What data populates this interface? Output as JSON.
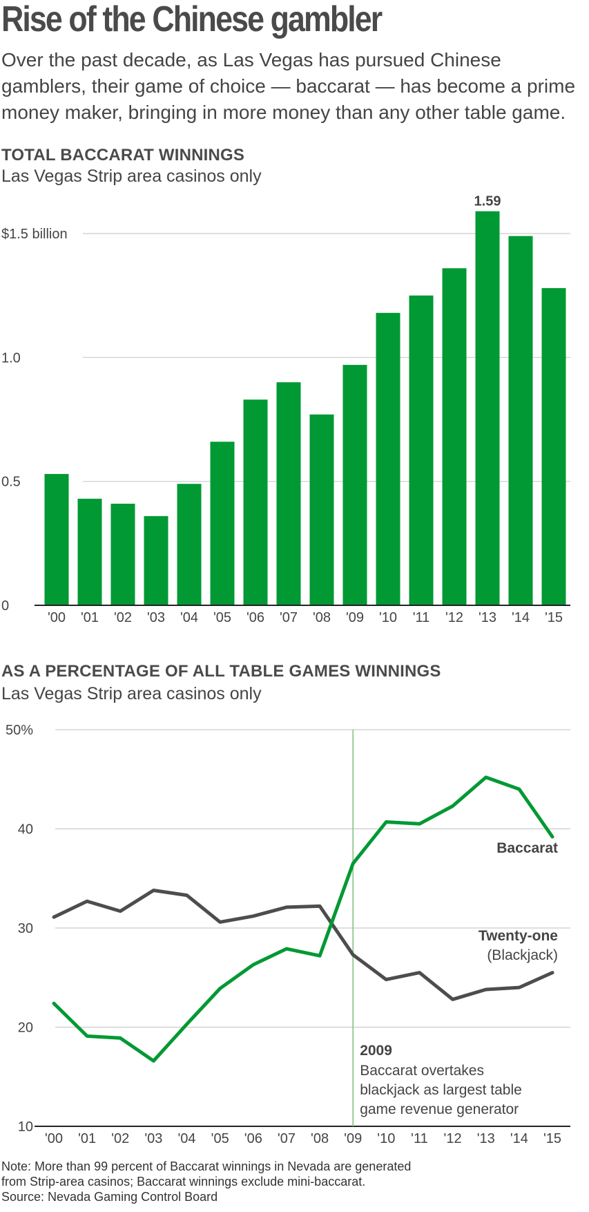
{
  "title": "Rise of the Chinese gambler",
  "intro": "Over the past decade, as Las Vegas has pursued Chinese gamblers, their game of choice — baccarat — has become a prime money maker, bringing in more money than any other table game.",
  "colors": {
    "baccarat": "#009933",
    "blackjack": "#4d4d4d",
    "grid": "#cccccc",
    "marker": "#7fbf7f"
  },
  "chart_data": [
    {
      "type": "bar",
      "title": "TOTAL BACCARAT WINNINGS",
      "subtitle": "Las Vegas Strip area casinos only",
      "categories": [
        "'00",
        "'01",
        "'02",
        "'03",
        "'04",
        "'05",
        "'06",
        "'07",
        "'08",
        "'09",
        "'10",
        "'11",
        "'12",
        "'13",
        "'14",
        "'15"
      ],
      "values": [
        0.53,
        0.43,
        0.41,
        0.36,
        0.49,
        0.66,
        0.83,
        0.9,
        0.77,
        0.97,
        1.18,
        1.25,
        1.36,
        1.59,
        1.49,
        1.28
      ],
      "ylim": [
        0,
        1.59
      ],
      "yticks": [
        {
          "value": 0,
          "label": "0"
        },
        {
          "value": 0.5,
          "label": "0.5"
        },
        {
          "value": 1.0,
          "label": "1.0"
        },
        {
          "value": 1.5,
          "label": "$1.5 billion"
        }
      ],
      "data_labels": [
        {
          "index": 13,
          "text": "1.59"
        }
      ],
      "grid": true
    },
    {
      "type": "line",
      "title": "AS A PERCENTAGE OF ALL TABLE GAMES WINNINGS",
      "subtitle": "Las Vegas Strip area casinos only",
      "categories": [
        "'00",
        "'01",
        "'02",
        "'03",
        "'04",
        "'05",
        "'06",
        "'07",
        "'08",
        "'09",
        "'10",
        "'11",
        "'12",
        "'13",
        "'14",
        "'15"
      ],
      "series": [
        {
          "name": "Baccarat",
          "values": [
            22.4,
            19.1,
            18.9,
            16.6,
            20.3,
            23.9,
            26.3,
            27.9,
            27.2,
            36.5,
            40.7,
            40.5,
            42.3,
            45.2,
            44.0,
            39.2
          ]
        },
        {
          "name": "Twenty-one",
          "name_line2": "(Blackjack)",
          "values": [
            31.1,
            32.7,
            31.7,
            33.8,
            33.3,
            30.6,
            31.2,
            32.1,
            32.2,
            27.3,
            24.8,
            25.5,
            22.8,
            23.8,
            24.0,
            25.5
          ]
        }
      ],
      "ylim": [
        10,
        50
      ],
      "yticks": [
        {
          "value": 10,
          "label": "10"
        },
        {
          "value": 20,
          "label": "20"
        },
        {
          "value": 30,
          "label": "30"
        },
        {
          "value": 40,
          "label": "40"
        },
        {
          "value": 50,
          "label": "50%"
        }
      ],
      "annotation": {
        "index": 9,
        "heading": "2009",
        "lines": [
          "Baccarat overtakes",
          "blackjack as largest table",
          "game revenue generator"
        ]
      },
      "grid": true
    }
  ],
  "notes": [
    "Note: More than 99 percent of Baccarat winnings in Nevada are generated",
    "from Strip-area casinos; Baccarat winnings exclude mini-baccarat.",
    "Source: Nevada Gaming Control Board"
  ]
}
